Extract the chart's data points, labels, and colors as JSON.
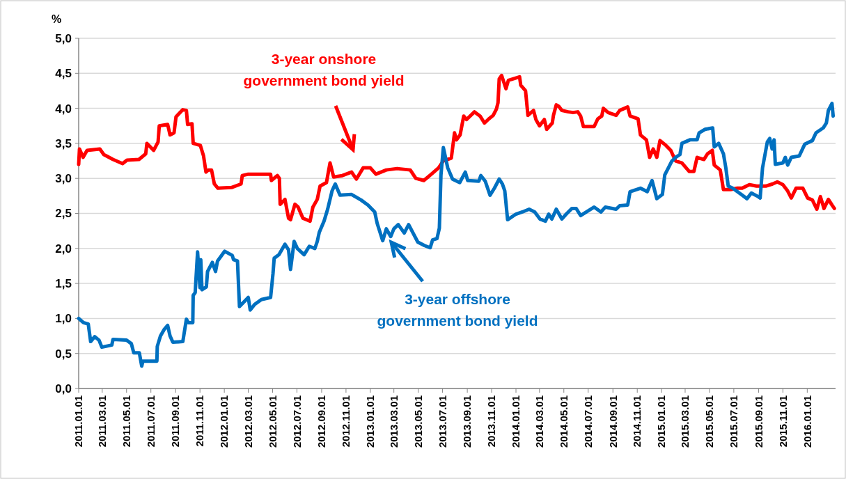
{
  "chart_data": {
    "type": "line",
    "ylabel": "%",
    "grid": "y",
    "marker": "none",
    "line_style": "solid",
    "ylim": [
      0,
      5
    ],
    "yticks": [
      {
        "value": 0,
        "label": "0,0"
      },
      {
        "value": 0.5,
        "label": "0,5"
      },
      {
        "value": 1,
        "label": "1,0"
      },
      {
        "value": 1.5,
        "label": "1,5"
      },
      {
        "value": 2,
        "label": "2,0"
      },
      {
        "value": 2.5,
        "label": "2,5"
      },
      {
        "value": 3,
        "label": "3,0"
      },
      {
        "value": 3.5,
        "label": "3,5"
      },
      {
        "value": 4,
        "label": "4,0"
      },
      {
        "value": 4.5,
        "label": "4,5"
      },
      {
        "value": 5,
        "label": "5,0"
      }
    ],
    "xlim": [
      "2011-01-01",
      "2016-03-12"
    ],
    "xticks": [
      {
        "value": "2011-01-01",
        "label": "2011.01.01"
      },
      {
        "value": "2011-03-01",
        "label": "2011.03.01"
      },
      {
        "value": "2011-05-01",
        "label": "2011.05.01"
      },
      {
        "value": "2011-07-01",
        "label": "2011.07.01"
      },
      {
        "value": "2011-09-01",
        "label": "2011.09.01"
      },
      {
        "value": "2011-11-01",
        "label": "2011.11.01"
      },
      {
        "value": "2012-01-01",
        "label": "2012.01.01"
      },
      {
        "value": "2012-03-01",
        "label": "2012.03.01"
      },
      {
        "value": "2012-05-01",
        "label": "2012.05.01"
      },
      {
        "value": "2012-07-01",
        "label": "2012.07.01"
      },
      {
        "value": "2012-09-01",
        "label": "2012.09.01"
      },
      {
        "value": "2012-11-01",
        "label": "2012.11.01"
      },
      {
        "value": "2013-01-01",
        "label": "2013.01.01"
      },
      {
        "value": "2013-03-01",
        "label": "2013.03.01"
      },
      {
        "value": "2013-05-01",
        "label": "2013.05.01"
      },
      {
        "value": "2013-07-01",
        "label": "2013.07.01"
      },
      {
        "value": "2013-09-01",
        "label": "2013.09.01"
      },
      {
        "value": "2013-11-01",
        "label": "2013.11.01"
      },
      {
        "value": "2014-01-01",
        "label": "2014.01.01"
      },
      {
        "value": "2014-03-01",
        "label": "2014.03.01"
      },
      {
        "value": "2014-05-01",
        "label": "2014.05.01"
      },
      {
        "value": "2014-07-01",
        "label": "2014.07.01"
      },
      {
        "value": "2014-09-01",
        "label": "2014.09.01"
      },
      {
        "value": "2014-11-01",
        "label": "2014.11.01"
      },
      {
        "value": "2015-01-01",
        "label": "2015.01.01"
      },
      {
        "value": "2015-03-01",
        "label": "2015.03.01"
      },
      {
        "value": "2015-05-01",
        "label": "2015.05.01"
      },
      {
        "value": "2015-07-01",
        "label": "2015.07.01"
      },
      {
        "value": "2015-09-01",
        "label": "2015.09.01"
      },
      {
        "value": "2015-11-01",
        "label": "2015.11.01"
      },
      {
        "value": "2016-01-01",
        "label": "2016.01.01"
      }
    ],
    "series": [
      {
        "name": "3-year onshore\ngovernment bond yield",
        "color": "#ff0000",
        "x": [
          "2011-01-01",
          "2011-01-03",
          "2011-01-12",
          "2011-01-22",
          "2011-02-23",
          "2011-03-05",
          "2011-03-28",
          "2011-04-21",
          "2011-05-02",
          "2011-06-01",
          "2011-06-18",
          "2011-06-21",
          "2011-07-08",
          "2011-07-19",
          "2011-07-22",
          "2011-08-12",
          "2011-08-18",
          "2011-08-28",
          "2011-09-02",
          "2011-09-19",
          "2011-09-28",
          "2011-10-01",
          "2011-10-12",
          "2011-10-15",
          "2011-11-02",
          "2011-11-10",
          "2011-11-16",
          "2011-11-22",
          "2011-11-30",
          "2011-12-07",
          "2011-12-16",
          "2012-01-19",
          "2012-02-12",
          "2012-02-15",
          "2012-03-01",
          "2012-04-26",
          "2012-04-28",
          "2012-05-13",
          "2012-05-18",
          "2012-05-20",
          "2012-06-01",
          "2012-06-10",
          "2012-06-15",
          "2012-06-26",
          "2012-07-04",
          "2012-07-16",
          "2012-08-03",
          "2012-08-10",
          "2012-08-21",
          "2012-08-28",
          "2012-09-13",
          "2012-09-22",
          "2012-10-01",
          "2012-10-23",
          "2012-11-15",
          "2012-11-27",
          "2012-12-14",
          "2013-01-01",
          "2013-01-15",
          "2013-02-10",
          "2013-03-09",
          "2013-04-11",
          "2013-04-25",
          "2013-05-15",
          "2013-06-03",
          "2013-06-21",
          "2013-07-03",
          "2013-07-23",
          "2013-07-31",
          "2013-08-05",
          "2013-08-14",
          "2013-08-23",
          "2013-08-30",
          "2013-09-19",
          "2013-10-03",
          "2013-10-14",
          "2013-10-25",
          "2013-11-05",
          "2013-11-13",
          "2013-11-17",
          "2013-11-20",
          "2013-11-26",
          "2013-12-07",
          "2013-12-13",
          "2013-12-30",
          "2014-01-10",
          "2014-01-13",
          "2014-01-25",
          "2014-01-31",
          "2014-02-14",
          "2014-02-20",
          "2014-03-01",
          "2014-03-13",
          "2014-03-19",
          "2014-04-02",
          "2014-04-05",
          "2014-04-12",
          "2014-04-18",
          "2014-04-26",
          "2014-05-12",
          "2014-05-24",
          "2014-06-05",
          "2014-06-12",
          "2014-06-19",
          "2014-07-16",
          "2014-07-25",
          "2014-08-04",
          "2014-08-08",
          "2014-08-20",
          "2014-09-09",
          "2014-09-18",
          "2014-10-08",
          "2014-10-14",
          "2014-11-03",
          "2014-11-09",
          "2014-11-24",
          "2014-12-02",
          "2014-12-11",
          "2014-12-20",
          "2014-12-28",
          "2015-01-12",
          "2015-01-24",
          "2015-02-05",
          "2015-02-21",
          "2015-03-11",
          "2015-03-23",
          "2015-03-31",
          "2015-04-17",
          "2015-04-26",
          "2015-05-08",
          "2015-05-13",
          "2015-05-28",
          "2015-06-05",
          "2015-06-23",
          "2015-07-10",
          "2015-07-22",
          "2015-08-09",
          "2015-08-27",
          "2015-09-19",
          "2015-10-06",
          "2015-10-18",
          "2015-11-01",
          "2015-11-13",
          "2015-11-22",
          "2015-12-04",
          "2015-12-21",
          "2016-01-02",
          "2016-01-14",
          "2016-01-25",
          "2016-02-03",
          "2016-02-12",
          "2016-02-23",
          "2016-03-03",
          "2016-03-09"
        ],
        "values": [
          3.2,
          3.42,
          3.3,
          3.4,
          3.42,
          3.34,
          3.27,
          3.21,
          3.26,
          3.27,
          3.35,
          3.5,
          3.4,
          3.52,
          3.75,
          3.77,
          3.62,
          3.65,
          3.88,
          3.98,
          3.97,
          3.77,
          3.78,
          3.5,
          3.47,
          3.32,
          3.09,
          3.12,
          3.12,
          2.92,
          2.86,
          2.87,
          2.92,
          3.04,
          3.06,
          3.06,
          2.97,
          3.04,
          3.0,
          2.63,
          2.7,
          2.43,
          2.41,
          2.63,
          2.59,
          2.43,
          2.39,
          2.59,
          2.7,
          2.89,
          2.94,
          3.22,
          3.02,
          3.04,
          3.09,
          2.99,
          3.15,
          3.15,
          3.06,
          3.12,
          3.14,
          3.12,
          3.0,
          2.97,
          3.06,
          3.15,
          3.25,
          3.29,
          3.65,
          3.55,
          3.62,
          3.89,
          3.84,
          3.95,
          3.89,
          3.79,
          3.85,
          3.9,
          3.99,
          4.08,
          4.42,
          4.47,
          4.28,
          4.4,
          4.43,
          4.45,
          4.33,
          4.25,
          3.9,
          3.97,
          3.84,
          3.75,
          3.84,
          3.7,
          3.79,
          3.9,
          4.05,
          4.03,
          3.97,
          3.95,
          3.94,
          3.95,
          3.89,
          3.74,
          3.74,
          3.85,
          3.89,
          4.0,
          3.94,
          3.9,
          3.97,
          4.02,
          3.89,
          3.85,
          3.62,
          3.55,
          3.3,
          3.42,
          3.3,
          3.54,
          3.47,
          3.4,
          3.25,
          3.22,
          3.1,
          3.1,
          3.3,
          3.27,
          3.35,
          3.4,
          3.19,
          3.12,
          2.84,
          2.84,
          2.86,
          2.86,
          2.91,
          2.89,
          2.89,
          2.92,
          2.95,
          2.91,
          2.82,
          2.72,
          2.86,
          2.86,
          2.72,
          2.69,
          2.56,
          2.74,
          2.57,
          2.7,
          2.62,
          2.57
        ]
      },
      {
        "name": "3-year offshore\ngovernment bond yield",
        "color": "#0070c0",
        "x": [
          "2011-01-01",
          "2011-01-13",
          "2011-01-25",
          "2011-01-31",
          "2011-02-10",
          "2011-02-21",
          "2011-02-28",
          "2011-03-25",
          "2011-03-28",
          "2011-05-01",
          "2011-05-13",
          "2011-05-19",
          "2011-06-02",
          "2011-06-08",
          "2011-06-11",
          "2011-07-16",
          "2011-07-17",
          "2011-07-25",
          "2011-08-03",
          "2011-08-12",
          "2011-08-18",
          "2011-08-25",
          "2011-09-19",
          "2011-09-28",
          "2011-10-03",
          "2011-10-14",
          "2011-10-15",
          "2011-10-20",
          "2011-10-26",
          "2011-11-01",
          "2011-11-03",
          "2011-11-06",
          "2011-11-17",
          "2011-11-20",
          "2011-12-02",
          "2011-12-10",
          "2011-12-15",
          "2012-01-02",
          "2012-01-21",
          "2012-01-24",
          "2012-02-03",
          "2012-02-08",
          "2012-03-01",
          "2012-03-06",
          "2012-03-17",
          "2012-04-03",
          "2012-04-26",
          "2012-05-02",
          "2012-05-05",
          "2012-05-17",
          "2012-06-01",
          "2012-06-10",
          "2012-06-15",
          "2012-06-24",
          "2012-07-02",
          "2012-07-19",
          "2012-08-01",
          "2012-08-15",
          "2012-08-21",
          "2012-08-26",
          "2012-09-07",
          "2012-09-16",
          "2012-09-27",
          "2012-10-05",
          "2012-10-17",
          "2012-11-15",
          "2012-12-09",
          "2012-12-26",
          "2013-01-12",
          "2013-01-18",
          "2013-02-01",
          "2013-02-10",
          "2013-02-21",
          "2013-03-01",
          "2013-03-12",
          "2013-03-27",
          "2013-04-07",
          "2013-04-18",
          "2013-04-30",
          "2013-05-17",
          "2013-05-31",
          "2013-06-06",
          "2013-06-17",
          "2013-06-23",
          "2013-06-27",
          "2013-07-03",
          "2013-07-14",
          "2013-07-26",
          "2013-08-13",
          "2013-08-27",
          "2013-09-02",
          "2013-09-30",
          "2013-10-05",
          "2013-10-16",
          "2013-10-28",
          "2013-11-08",
          "2013-11-20",
          "2013-11-28",
          "2013-12-04",
          "2013-12-11",
          "2014-01-01",
          "2014-01-17",
          "2014-02-03",
          "2014-02-17",
          "2014-03-02",
          "2014-03-16",
          "2014-03-24",
          "2014-04-01",
          "2014-04-12",
          "2014-04-26",
          "2014-05-07",
          "2014-05-21",
          "2014-06-01",
          "2014-06-12",
          "2014-07-16",
          "2014-08-02",
          "2014-08-13",
          "2014-09-09",
          "2014-09-18",
          "2014-10-08",
          "2014-10-14",
          "2014-11-09",
          "2014-11-26",
          "2014-12-08",
          "2014-12-20",
          "2015-01-03",
          "2015-01-09",
          "2015-01-18",
          "2015-01-26",
          "2015-02-05",
          "2015-02-16",
          "2015-02-21",
          "2015-03-13",
          "2015-03-31",
          "2015-04-05",
          "2015-04-20",
          "2015-05-09",
          "2015-05-13",
          "2015-05-24",
          "2015-06-05",
          "2015-06-11",
          "2015-06-17",
          "2015-06-28",
          "2015-07-22",
          "2015-08-03",
          "2015-08-14",
          "2015-08-31",
          "2015-09-05",
          "2015-09-11",
          "2015-09-23",
          "2015-09-29",
          "2015-10-05",
          "2015-10-10",
          "2015-10-13",
          "2015-11-01",
          "2015-11-07",
          "2015-11-13",
          "2015-11-22",
          "2015-12-12",
          "2015-12-26",
          "2016-01-14",
          "2016-01-23",
          "2016-02-10",
          "2016-02-18",
          "2016-02-23",
          "2016-03-03",
          "2016-03-06"
        ],
        "values": [
          1.0,
          0.94,
          0.92,
          0.67,
          0.74,
          0.69,
          0.59,
          0.62,
          0.7,
          0.69,
          0.64,
          0.51,
          0.51,
          0.32,
          0.39,
          0.39,
          0.6,
          0.75,
          0.84,
          0.9,
          0.75,
          0.66,
          0.67,
          0.99,
          0.94,
          0.94,
          1.33,
          1.37,
          1.95,
          1.44,
          1.84,
          1.41,
          1.45,
          1.67,
          1.8,
          1.67,
          1.82,
          1.96,
          1.9,
          1.84,
          1.82,
          1.17,
          1.3,
          1.12,
          1.2,
          1.27,
          1.3,
          1.64,
          1.86,
          1.91,
          2.06,
          1.98,
          1.7,
          2.1,
          2.0,
          1.91,
          2.03,
          2.0,
          2.1,
          2.23,
          2.39,
          2.56,
          2.82,
          2.92,
          2.76,
          2.77,
          2.69,
          2.62,
          2.52,
          2.36,
          2.11,
          2.28,
          2.17,
          2.28,
          2.34,
          2.22,
          2.34,
          2.22,
          2.09,
          2.04,
          2.01,
          2.12,
          2.14,
          2.29,
          3.05,
          3.44,
          3.15,
          2.99,
          2.94,
          3.09,
          2.97,
          2.96,
          3.04,
          2.96,
          2.76,
          2.86,
          2.99,
          2.92,
          2.82,
          2.41,
          2.49,
          2.52,
          2.56,
          2.52,
          2.42,
          2.39,
          2.49,
          2.42,
          2.56,
          2.42,
          2.49,
          2.57,
          2.57,
          2.47,
          2.59,
          2.52,
          2.59,
          2.56,
          2.61,
          2.62,
          2.81,
          2.86,
          2.81,
          2.97,
          2.71,
          2.77,
          3.05,
          3.15,
          3.24,
          3.3,
          3.34,
          3.5,
          3.55,
          3.55,
          3.65,
          3.7,
          3.72,
          3.45,
          3.5,
          3.35,
          3.15,
          2.89,
          2.86,
          2.76,
          2.71,
          2.79,
          2.74,
          2.72,
          3.15,
          3.52,
          3.57,
          3.42,
          3.55,
          3.2,
          3.22,
          3.3,
          3.19,
          3.3,
          3.32,
          3.49,
          3.54,
          3.65,
          3.72,
          3.79,
          3.97,
          4.07,
          3.89
        ]
      }
    ]
  }
}
